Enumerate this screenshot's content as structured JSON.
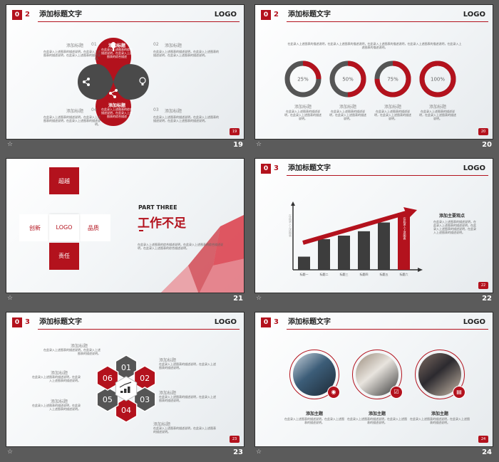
{
  "slides": [
    {
      "badge": "0",
      "section": "2",
      "title": "添加标题文字",
      "logo": "LOGO",
      "page": "19",
      "footer": "19",
      "petals": [
        {
          "title": "添加标题",
          "text": "在此录入上述图表的综合描述说明，在此录入上述图表的综合描述"
        },
        {
          "title": "添加标题",
          "text": "在此录入上述图表的综合描述说明，在此录入上述图表的综合描述"
        }
      ],
      "items": [
        {
          "title": "添加标题",
          "num": "01",
          "text": "在此录入上述图表的描述说明，在此录入上述图表的描述说明，在此录入上述图表的描述说明。"
        },
        {
          "title": "添加标题",
          "num": "02",
          "text": "在此录入上述图表的描述说明，在此录入上述图表的描述说明，在此录入上述图表的描述说明。"
        },
        {
          "title": "添加标题",
          "num": "04",
          "text": "在此录入上述图表的描述说明，在此录入上述图表的描述说明，在此录入上述图表的描述说明。"
        },
        {
          "title": "添加标题",
          "num": "03",
          "text": "在此录入上述图表的描述说明，在此录入上述图表的描述说明，在此录入上述图表的描述说明。"
        }
      ],
      "icons": [
        "microphone-icon",
        "share-icon",
        "lightbulb-icon",
        "nodes-icon"
      ]
    },
    {
      "badge": "0",
      "section": "2",
      "title": "添加标题文字",
      "logo": "LOGO",
      "page": "20",
      "footer": "20",
      "intro": "在此录入上述图表的描述说明，在此录入上述图表的描述说明，在此录入上述图表的描述说明，在此录入上述图表的描述说明，在此录入上述图表的描述说明。",
      "rings": [
        {
          "value": 25,
          "label": "25%",
          "title": "添加标题",
          "text": "在此录入上述图表的描述说明，在此录入上述图表的描述说明。"
        },
        {
          "value": 50,
          "label": "50%",
          "title": "添加标题",
          "text": "在此录入上述图表的描述说明，在此录入上述图表的描述说明。"
        },
        {
          "value": 75,
          "label": "75%",
          "title": "添加标题",
          "text": "在此录入上述图表的描述说明，在此录入上述图表的描述说明。"
        },
        {
          "value": 100,
          "label": "100%",
          "title": "添加标题",
          "text": "在此录入上述图表的描述说明，在此录入上述图表的描述说明。"
        }
      ]
    },
    {
      "footer": "21",
      "cross": {
        "top": "超越",
        "left": "创新",
        "center": "LOGO",
        "right": "品质",
        "bottom": "责任"
      },
      "part": "PART THREE",
      "heading": "工作不足",
      "text": "在此录入上述图表的综合描述说明，在此录入上述图表的综合描述说明，在此录入上述图表的综合描述说明。"
    },
    {
      "badge": "0",
      "section": "3",
      "title": "添加标题文字",
      "logo": "LOGO",
      "page": "22",
      "footer": "22",
      "side_title": "添加主要观点",
      "side_text": "在此录入上述图表的描述说明，在此录入上述图表的描述说明，在此录入上述图表的描述说明，在此录入上述图表的描述说明。",
      "y_axis_text": "在此录入上述图表",
      "highlight_text": "在此录入上述图表",
      "chart_data": {
        "type": "bar",
        "categories": [
          "标题一",
          "标题二",
          "标题三",
          "标题四",
          "标题五",
          "标题六"
        ],
        "values": [
          15,
          35,
          39,
          44,
          54,
          65
        ],
        "highlight_index": 5,
        "colors": {
          "bar": "#3d3d3d",
          "highlight": "#b3121d"
        }
      }
    },
    {
      "badge": "0",
      "section": "3",
      "title": "添加标题文字",
      "logo": "LOGO",
      "page": "23",
      "footer": "23",
      "hexes": [
        "01",
        "02",
        "03",
        "04",
        "05",
        "06"
      ],
      "center_icon": "chart-icon",
      "items": [
        {
          "title": "添加标题",
          "text": "在此录入上述图表的描述说明，在此录入上述图表的描述说明。"
        },
        {
          "title": "添加标题",
          "text": "在此录入上述图表的描述说明，在此录入上述图表的描述说明。"
        },
        {
          "title": "添加标题",
          "text": "在此录入上述图表的描述说明，在此录入上述图表的描述说明。"
        },
        {
          "title": "添加标题",
          "text": "在此录入上述图表的描述说明，在此录入上述图表的描述说明。"
        },
        {
          "title": "添加标题",
          "text": "在此录入上述图表的描述说明，在此录入上述图表的描述说明。"
        },
        {
          "title": "添加标题",
          "text": "在此录入上述图表的描述说明，在此录入上述图表的描述说明。"
        }
      ]
    },
    {
      "badge": "0",
      "section": "3",
      "title": "添加标题文字",
      "logo": "LOGO",
      "page": "24",
      "footer": "24",
      "cards": [
        {
          "title": "添加主题",
          "text": "在此录入上述图表的描述说明，在此录入上述图表的描述说明。",
          "icon": "wifi-icon"
        },
        {
          "title": "添加主题",
          "text": "在此录入上述图表的描述说明，在此录入上述图表的描述说明。",
          "icon": "checkbox-icon"
        },
        {
          "title": "添加主题",
          "text": "在此录入上述图表的描述说明，在此录入上述图表的描述说明。",
          "icon": "document-icon"
        }
      ]
    }
  ]
}
